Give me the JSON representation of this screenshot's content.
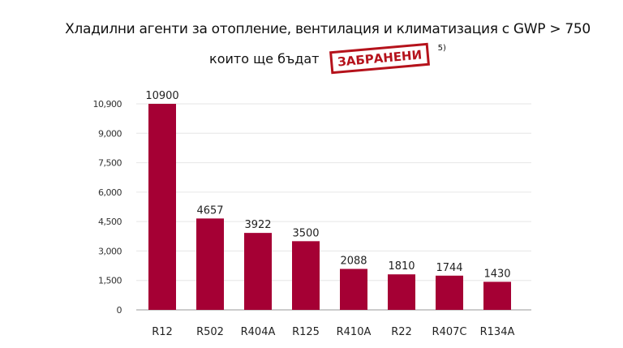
{
  "title": {
    "line1": "Хладилни агенти за отопление, вентилация и климатизация с GWP > 750",
    "line2": "които ще бъдат",
    "stamp": "ЗАБРАНЕНИ",
    "footnote": "5)"
  },
  "chart_data": {
    "type": "bar",
    "categories": [
      "R12",
      "R502",
      "R404A",
      "R125",
      "R410A",
      "R22",
      "R407C",
      "R134A"
    ],
    "values": [
      10900,
      4657,
      3922,
      3500,
      2088,
      1810,
      1744,
      1430
    ],
    "y_ticks": [
      "0",
      "1,500",
      "3,000",
      "4,500",
      "6,000",
      "7,500",
      "9,000",
      "10,900"
    ],
    "y_tick_values": [
      0,
      1500,
      3000,
      4500,
      6000,
      7500,
      9000,
      10900
    ],
    "ylim": [
      0,
      10900
    ],
    "grid": true,
    "bar_color": "#a50034"
  }
}
